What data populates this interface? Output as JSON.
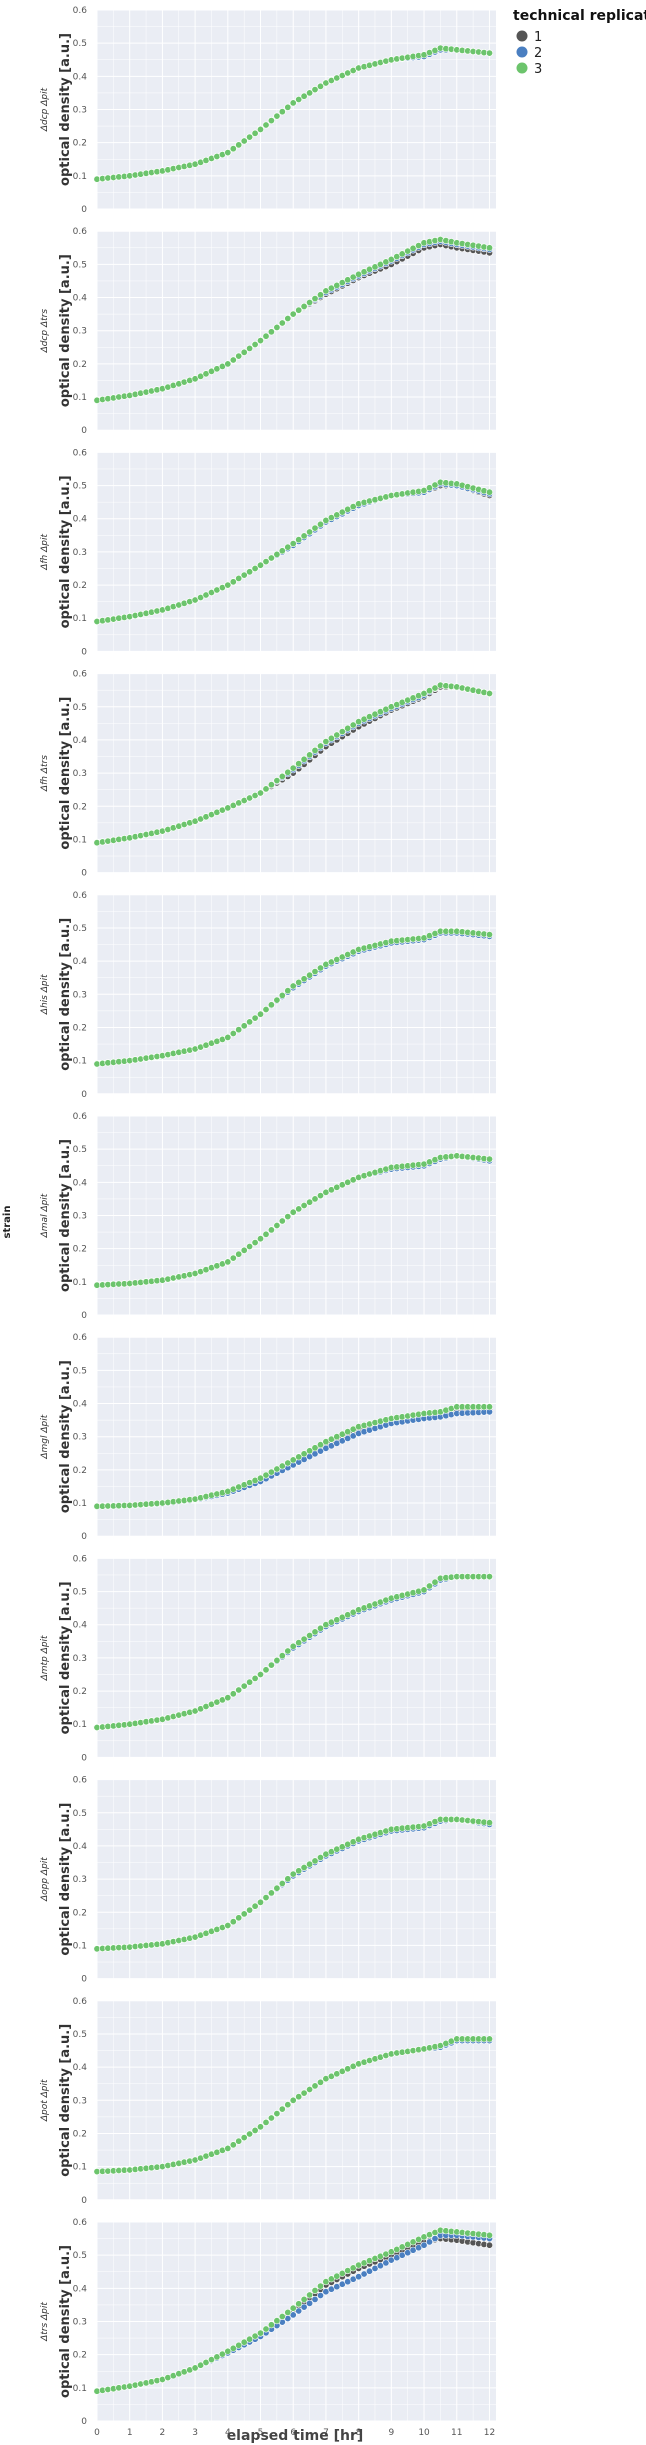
{
  "chart_data": {
    "type": "scatter",
    "facet_label": "strain",
    "xlabel": "elapsed time [hr]",
    "ylabel": "optical density [a.u.]",
    "xlim": [
      0,
      12.2
    ],
    "ylim": [
      0,
      0.6
    ],
    "xticks": [
      0,
      1,
      2,
      3,
      4,
      5,
      6,
      7,
      8,
      9,
      10,
      11,
      12
    ],
    "yticks": [
      0,
      0.1,
      0.2,
      0.3,
      0.4,
      0.5,
      0.6
    ],
    "grid": true,
    "legend": {
      "title": "technical replicate",
      "position": "top-right",
      "entries": [
        {
          "label": "1",
          "color": "#555555"
        },
        {
          "label": "2",
          "color": "#4a7fc1"
        },
        {
          "label": "3",
          "color": "#6cc46c"
        }
      ]
    },
    "facets": [
      {
        "strain": "Δdcp Δpit",
        "x": [
          0,
          1,
          2,
          3,
          4,
          5,
          6,
          7,
          8,
          9,
          10,
          10.5,
          11,
          12
        ],
        "series": [
          {
            "name": "1",
            "values": [
              0.09,
              0.1,
              0.115,
              0.135,
              0.17,
              0.24,
              0.32,
              0.38,
              0.425,
              0.45,
              0.46,
              0.48,
              0.48,
              0.47
            ]
          },
          {
            "name": "2",
            "values": [
              0.09,
              0.1,
              0.115,
              0.135,
              0.17,
              0.24,
              0.32,
              0.38,
              0.425,
              0.45,
              0.46,
              0.48,
              0.48,
              0.47
            ]
          },
          {
            "name": "3",
            "values": [
              0.09,
              0.1,
              0.115,
              0.135,
              0.17,
              0.24,
              0.32,
              0.38,
              0.425,
              0.45,
              0.465,
              0.485,
              0.48,
              0.47
            ]
          }
        ]
      },
      {
        "strain": "Δdcp Δtrs",
        "x": [
          0,
          1,
          2,
          3,
          4,
          5,
          6,
          7,
          8,
          9,
          10,
          10.5,
          11,
          12
        ],
        "series": [
          {
            "name": "1",
            "values": [
              0.09,
              0.105,
              0.125,
              0.155,
              0.2,
              0.27,
              0.35,
              0.41,
              0.46,
              0.5,
              0.55,
              0.56,
              0.55,
              0.535
            ]
          },
          {
            "name": "2",
            "values": [
              0.09,
              0.105,
              0.125,
              0.155,
              0.2,
              0.27,
              0.35,
              0.415,
              0.465,
              0.51,
              0.56,
              0.57,
              0.56,
              0.545
            ]
          },
          {
            "name": "3",
            "values": [
              0.09,
              0.105,
              0.125,
              0.155,
              0.2,
              0.27,
              0.35,
              0.42,
              0.47,
              0.515,
              0.565,
              0.575,
              0.565,
              0.55
            ]
          }
        ]
      },
      {
        "strain": "Δfh Δpit",
        "x": [
          0,
          1,
          2,
          3,
          4,
          5,
          6,
          7,
          8,
          9,
          10,
          10.5,
          11,
          12
        ],
        "series": [
          {
            "name": "1",
            "values": [
              0.09,
              0.105,
              0.125,
              0.155,
              0.2,
              0.26,
              0.32,
              0.39,
              0.44,
              0.47,
              0.48,
              0.5,
              0.5,
              0.47
            ]
          },
          {
            "name": "2",
            "values": [
              0.09,
              0.105,
              0.125,
              0.155,
              0.2,
              0.26,
              0.32,
              0.39,
              0.44,
              0.47,
              0.48,
              0.505,
              0.5,
              0.475
            ]
          },
          {
            "name": "3",
            "values": [
              0.09,
              0.105,
              0.125,
              0.155,
              0.2,
              0.26,
              0.325,
              0.395,
              0.445,
              0.47,
              0.485,
              0.51,
              0.505,
              0.48
            ]
          }
        ]
      },
      {
        "strain": "Δfh Δtrs",
        "x": [
          0,
          1,
          2,
          3,
          4,
          5,
          6,
          7,
          8,
          9,
          10,
          10.5,
          11,
          12
        ],
        "series": [
          {
            "name": "1",
            "values": [
              0.09,
              0.105,
              0.125,
              0.155,
              0.195,
              0.24,
              0.3,
              0.38,
              0.44,
              0.49,
              0.53,
              0.56,
              0.56,
              0.54
            ]
          },
          {
            "name": "2",
            "values": [
              0.09,
              0.105,
              0.125,
              0.155,
              0.195,
              0.24,
              0.31,
              0.39,
              0.45,
              0.495,
              0.535,
              0.565,
              0.56,
              0.54
            ]
          },
          {
            "name": "3",
            "values": [
              0.09,
              0.105,
              0.125,
              0.155,
              0.195,
              0.24,
              0.315,
              0.395,
              0.455,
              0.5,
              0.54,
              0.565,
              0.56,
              0.54
            ]
          }
        ]
      },
      {
        "strain": "Δhis Δpit",
        "x": [
          0,
          1,
          2,
          3,
          4,
          5,
          6,
          7,
          8,
          9,
          10,
          10.5,
          11,
          12
        ],
        "series": [
          {
            "name": "1",
            "values": [
              0.09,
              0.1,
              0.115,
              0.135,
              0.17,
              0.24,
              0.32,
              0.385,
              0.43,
              0.455,
              0.465,
              0.485,
              0.485,
              0.475
            ]
          },
          {
            "name": "2",
            "values": [
              0.09,
              0.1,
              0.115,
              0.135,
              0.17,
              0.24,
              0.32,
              0.385,
              0.43,
              0.455,
              0.465,
              0.485,
              0.485,
              0.475
            ]
          },
          {
            "name": "3",
            "values": [
              0.09,
              0.1,
              0.115,
              0.135,
              0.17,
              0.24,
              0.325,
              0.39,
              0.435,
              0.46,
              0.47,
              0.49,
              0.49,
              0.48
            ]
          }
        ]
      },
      {
        "strain": "Δmal Δpit",
        "x": [
          0,
          1,
          2,
          3,
          4,
          5,
          6,
          7,
          8,
          9,
          10,
          10.5,
          11,
          12
        ],
        "series": [
          {
            "name": "1",
            "values": [
              0.09,
              0.095,
              0.105,
              0.125,
              0.16,
              0.23,
              0.31,
              0.37,
              0.415,
              0.44,
              0.45,
              0.47,
              0.48,
              0.465
            ]
          },
          {
            "name": "2",
            "values": [
              0.09,
              0.095,
              0.105,
              0.125,
              0.16,
              0.23,
              0.31,
              0.37,
              0.415,
              0.44,
              0.45,
              0.47,
              0.48,
              0.465
            ]
          },
          {
            "name": "3",
            "values": [
              0.09,
              0.095,
              0.105,
              0.125,
              0.16,
              0.23,
              0.31,
              0.37,
              0.415,
              0.445,
              0.455,
              0.475,
              0.48,
              0.47
            ]
          }
        ]
      },
      {
        "strain": "Δmgl Δpit",
        "x": [
          0,
          1,
          2,
          3,
          4,
          5,
          6,
          7,
          8,
          9,
          10,
          10.5,
          11,
          12
        ],
        "series": [
          {
            "name": "1",
            "values": [
              0.09,
              0.093,
              0.098,
              0.11,
              0.13,
              0.17,
              0.22,
              0.275,
              0.32,
              0.345,
              0.36,
              0.365,
              0.375,
              0.38
            ]
          },
          {
            "name": "2",
            "values": [
              0.09,
              0.093,
              0.098,
              0.11,
              0.13,
              0.165,
              0.215,
              0.265,
              0.31,
              0.34,
              0.355,
              0.36,
              0.37,
              0.375
            ]
          },
          {
            "name": "3",
            "values": [
              0.09,
              0.093,
              0.1,
              0.112,
              0.135,
              0.175,
              0.23,
              0.285,
              0.33,
              0.355,
              0.37,
              0.375,
              0.39,
              0.39
            ]
          }
        ]
      },
      {
        "strain": "Δmtp Δpit",
        "x": [
          0,
          1,
          2,
          3,
          4,
          5,
          6,
          7,
          8,
          9,
          10,
          10.5,
          11,
          12
        ],
        "series": [
          {
            "name": "1",
            "values": [
              0.09,
              0.1,
              0.115,
              0.14,
              0.18,
              0.25,
              0.33,
              0.395,
              0.44,
              0.475,
              0.5,
              0.535,
              0.545,
              0.545
            ]
          },
          {
            "name": "2",
            "values": [
              0.09,
              0.1,
              0.115,
              0.14,
              0.18,
              0.25,
              0.33,
              0.395,
              0.44,
              0.475,
              0.5,
              0.535,
              0.545,
              0.545
            ]
          },
          {
            "name": "3",
            "values": [
              0.09,
              0.1,
              0.115,
              0.14,
              0.18,
              0.25,
              0.335,
              0.4,
              0.445,
              0.48,
              0.505,
              0.54,
              0.545,
              0.545
            ]
          }
        ]
      },
      {
        "strain": "Δopp Δpit",
        "x": [
          0,
          1,
          2,
          3,
          4,
          5,
          6,
          7,
          8,
          9,
          10,
          10.5,
          11,
          12
        ],
        "series": [
          {
            "name": "1",
            "values": [
              0.09,
              0.095,
              0.105,
              0.125,
              0.16,
              0.23,
              0.31,
              0.37,
              0.415,
              0.445,
              0.455,
              0.475,
              0.48,
              0.465
            ]
          },
          {
            "name": "2",
            "values": [
              0.09,
              0.095,
              0.105,
              0.125,
              0.16,
              0.23,
              0.31,
              0.37,
              0.415,
              0.445,
              0.455,
              0.475,
              0.48,
              0.465
            ]
          },
          {
            "name": "3",
            "values": [
              0.09,
              0.095,
              0.105,
              0.125,
              0.16,
              0.23,
              0.315,
              0.375,
              0.42,
              0.45,
              0.46,
              0.48,
              0.48,
              0.47
            ]
          }
        ]
      },
      {
        "strain": "Δpot Δpit",
        "x": [
          0,
          1,
          2,
          3,
          4,
          5,
          6,
          7,
          8,
          9,
          10,
          10.5,
          11,
          12
        ],
        "series": [
          {
            "name": "1",
            "values": [
              0.085,
              0.09,
              0.1,
              0.12,
              0.155,
              0.22,
              0.3,
              0.365,
              0.41,
              0.44,
              0.455,
              0.46,
              0.48,
              0.48
            ]
          },
          {
            "name": "2",
            "values": [
              0.085,
              0.09,
              0.1,
              0.12,
              0.155,
              0.22,
              0.3,
              0.365,
              0.41,
              0.44,
              0.455,
              0.46,
              0.48,
              0.48
            ]
          },
          {
            "name": "3",
            "values": [
              0.085,
              0.09,
              0.1,
              0.12,
              0.155,
              0.22,
              0.3,
              0.365,
              0.41,
              0.44,
              0.455,
              0.465,
              0.485,
              0.485
            ]
          }
        ]
      },
      {
        "strain": "Δtrs Δpit",
        "x": [
          0,
          1,
          2,
          3,
          4,
          5,
          6,
          7,
          8,
          9,
          10,
          10.5,
          11,
          12
        ],
        "series": [
          {
            "name": "1",
            "values": [
              0.09,
              0.105,
              0.125,
              0.16,
              0.21,
              0.26,
              0.33,
              0.41,
              0.46,
              0.5,
              0.54,
              0.55,
              0.545,
              0.53
            ]
          },
          {
            "name": "2",
            "values": [
              0.09,
              0.105,
              0.125,
              0.16,
              0.205,
              0.255,
              0.32,
              0.39,
              0.435,
              0.485,
              0.53,
              0.56,
              0.56,
              0.55
            ]
          },
          {
            "name": "3",
            "values": [
              0.09,
              0.105,
              0.125,
              0.16,
              0.21,
              0.265,
              0.34,
              0.42,
              0.47,
              0.51,
              0.555,
              0.575,
              0.57,
              0.56
            ]
          }
        ]
      }
    ]
  }
}
